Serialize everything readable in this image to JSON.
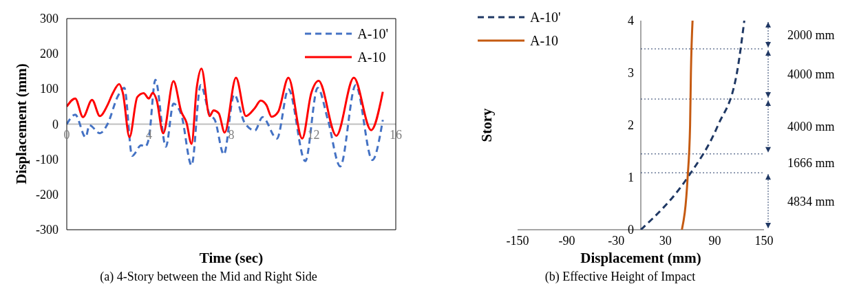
{
  "chart_data": [
    {
      "type": "line",
      "title": "(a) 4-Story between the Mid and Right Side",
      "xlabel": "Time (sec)",
      "ylabel": "Displacement (mm)",
      "xlim": [
        0,
        16
      ],
      "xticks": [
        0,
        4,
        8,
        12,
        16
      ],
      "ylim": [
        -300,
        300
      ],
      "yticks": [
        -300,
        -200,
        -100,
        0,
        100,
        200,
        300
      ],
      "legend": "top right",
      "marker": "none",
      "series": [
        {
          "name": "A-10'",
          "color": "#4472c4",
          "line_style": "dashed",
          "x": [
            0,
            0.41,
            0.92,
            1.1,
            1.61,
            1.98,
            2.49,
            2.8,
            3.18,
            3.62,
            3.81,
            3.99,
            4.31,
            4.82,
            5.19,
            5.57,
            6.07,
            6.51,
            6.95,
            7.2,
            7.64,
            8.14,
            8.64,
            9.15,
            9.52,
            10.22,
            10.78,
            11.6,
            12.2,
            12.7,
            13.3,
            14.05,
            14.86,
            15.37
          ],
          "values": [
            0,
            27,
            -37,
            -3,
            -26,
            0,
            80,
            103,
            -90,
            -60,
            -64,
            -41,
            126,
            -64,
            58,
            27,
            -117,
            111,
            27,
            12,
            -86,
            84,
            5,
            -18,
            20,
            -41,
            99,
            -105,
            103,
            12,
            -120,
            111,
            -102,
            12
          ]
        },
        {
          "name": "A-10",
          "color": "#ff0000",
          "line_style": "solid",
          "x": [
            0,
            0.41,
            0.79,
            1.23,
            1.61,
            1.98,
            2.24,
            2.55,
            2.73,
            3.05,
            3.43,
            3.74,
            3.99,
            4.18,
            4.37,
            4.69,
            5.19,
            5.57,
            5.82,
            6.07,
            6.32,
            6.55,
            6.95,
            7.14,
            7.39,
            7.68,
            8.23,
            8.71,
            9.15,
            9.43,
            9.71,
            9.96,
            10.28,
            10.78,
            11.45,
            11.89,
            12.25,
            13.11,
            13.96,
            14.8,
            15.37
          ],
          "values": [
            50,
            73,
            20,
            69,
            23,
            54,
            88,
            114,
            88,
            -37,
            77,
            88,
            73,
            89,
            69,
            -26,
            122,
            35,
            5,
            -56,
            103,
            158,
            23,
            39,
            31,
            -24,
            132,
            23,
            46,
            67,
            54,
            21,
            35,
            132,
            -41,
            88,
            123,
            -33,
            132,
            -17,
            92
          ]
        }
      ]
    },
    {
      "type": "line",
      "title": "(b) Effective Height of Impact",
      "xlabel": "Displacement (mm)",
      "ylabel": "Story",
      "xlim": [
        -150,
        150
      ],
      "xticks": [
        -150,
        -90,
        -30,
        30,
        90,
        150
      ],
      "ylim": [
        0,
        4
      ],
      "yticks": [
        0,
        1,
        2,
        3,
        4
      ],
      "legend": "top left",
      "marker": "none",
      "ref_lines": [
        {
          "axis": "y",
          "value": 3.46,
          "color": "#203864",
          "line_style": "dotted"
        },
        {
          "axis": "y",
          "value": 2.5,
          "color": "#203864",
          "line_style": "dotted"
        },
        {
          "axis": "y",
          "value": 1.45,
          "color": "#203864",
          "line_style": "dotted"
        },
        {
          "axis": "y",
          "value": 1.09,
          "color": "#203864",
          "line_style": "dotted"
        }
      ],
      "annotations": [
        "2000 mm",
        "4000 mm",
        "4000 mm",
        "1666 mm",
        "4834 mm"
      ],
      "series": [
        {
          "name": "A-10'",
          "color": "#1f3864",
          "line_style": "dashed",
          "x": [
            0,
            57,
            94,
            117,
            126
          ],
          "values": [
            0,
            1,
            2,
            3,
            4
          ]
        },
        {
          "name": "A-10",
          "color": "#c55a11",
          "line_style": "solid",
          "x": [
            50,
            57,
            60,
            61,
            63
          ],
          "values": [
            0,
            1,
            2,
            3,
            4
          ]
        }
      ]
    }
  ]
}
